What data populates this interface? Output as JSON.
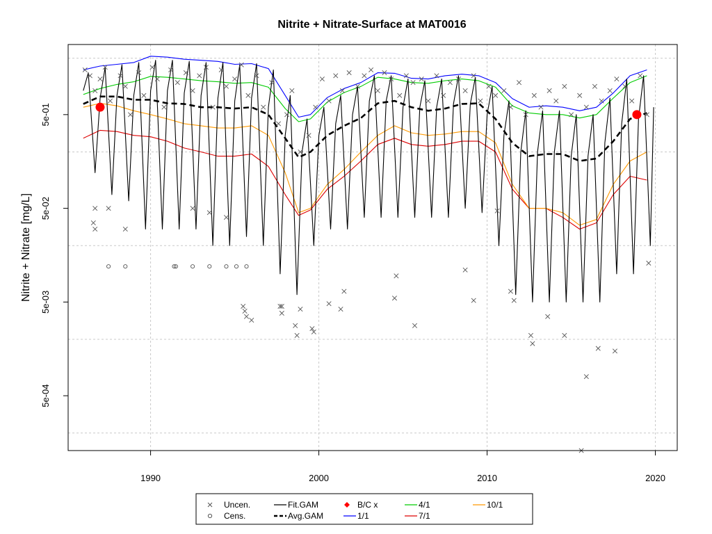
{
  "chart_data": {
    "type": "line",
    "title": "Nitrite + Nitrate-Surface at MAT0016",
    "xlabel": "",
    "ylabel": "Nitrite + Nitrate [mg/L]",
    "y_scale": "log",
    "xlim": [
      1985.1,
      2021.3
    ],
    "ylim": [
      0.00013,
      2.8
    ],
    "x_ticks": [
      1990,
      2000,
      2010,
      2020
    ],
    "x_tick_labels": [
      "1990",
      "2000",
      "2010",
      "2020"
    ],
    "y_ticks": [
      0.0005,
      0.005,
      0.05,
      0.5
    ],
    "y_tick_labels": [
      "5e-04",
      "5e-03",
      "5e-02",
      "5e-01"
    ],
    "grid": true,
    "grid_h_lines": [
      0.0002,
      0.002,
      0.02,
      0.2,
      2
    ],
    "grid_v_lines": [
      1990,
      2000,
      2010,
      2020
    ],
    "legend_position": "bottom",
    "series": [
      {
        "name": "Avg.GAM",
        "color": "#000000",
        "style": "dashed",
        "x": [
          1986.0,
          1987.0,
          1988.0,
          1989.0,
          1990.0,
          1991.0,
          1992.0,
          1993.0,
          1994.0,
          1995.0,
          1996.0,
          1997.0,
          1998.0,
          1998.8,
          1999.5,
          2000.5,
          2001.5,
          2002.5,
          2003.5,
          2004.5,
          2005.5,
          2006.5,
          2007.5,
          2008.5,
          2009.5,
          2010.5,
          2011.5,
          2012.5,
          2013.5,
          2014.5,
          2015.5,
          2016.5,
          2017.5,
          2018.5,
          2019.5
        ],
        "y": [
          0.65,
          0.78,
          0.78,
          0.72,
          0.72,
          0.66,
          0.65,
          0.6,
          0.6,
          0.58,
          0.6,
          0.5,
          0.28,
          0.175,
          0.2,
          0.3,
          0.38,
          0.46,
          0.66,
          0.7,
          0.6,
          0.55,
          0.58,
          0.65,
          0.66,
          0.45,
          0.25,
          0.18,
          0.19,
          0.19,
          0.16,
          0.17,
          0.26,
          0.45,
          0.52
        ]
      },
      {
        "name": "1/1",
        "color": "#0000ff",
        "style": "solid",
        "x": [
          1986.0,
          1987.0,
          1988.0,
          1989.0,
          1990.0,
          1991.0,
          1992.0,
          1993.0,
          1994.0,
          1995.0,
          1996.0,
          1997.0,
          1998.0,
          1998.8,
          1999.5,
          2000.5,
          2001.5,
          2002.5,
          2003.5,
          2004.5,
          2005.5,
          2006.5,
          2007.5,
          2008.5,
          2009.5,
          2010.5,
          2011.5,
          2012.5,
          2013.5,
          2014.5,
          2015.5,
          2016.5,
          2017.5,
          2018.5,
          2019.5
        ],
        "y": [
          1.5,
          1.65,
          1.72,
          1.8,
          2.1,
          2.05,
          1.95,
          1.9,
          1.85,
          1.72,
          1.75,
          1.55,
          0.8,
          0.47,
          0.5,
          0.76,
          0.95,
          1.1,
          1.4,
          1.38,
          1.22,
          1.2,
          1.3,
          1.35,
          1.3,
          1.1,
          0.74,
          0.6,
          0.62,
          0.6,
          0.55,
          0.6,
          0.85,
          1.3,
          1.5
        ]
      },
      {
        "name": "4/1",
        "color": "#00cc00",
        "style": "solid",
        "x": [
          1986.0,
          1987.0,
          1988.0,
          1989.0,
          1990.0,
          1991.0,
          1992.0,
          1993.0,
          1994.0,
          1995.0,
          1996.0,
          1997.0,
          1998.0,
          1998.8,
          1999.5,
          2000.5,
          2001.5,
          2002.5,
          2003.5,
          2004.5,
          2005.5,
          2006.5,
          2007.5,
          2008.5,
          2009.5,
          2010.5,
          2011.5,
          2012.5,
          2013.5,
          2014.5,
          2015.5,
          2016.5,
          2017.5,
          2018.5,
          2019.5
        ],
        "y": [
          0.82,
          0.95,
          1.05,
          1.12,
          1.28,
          1.25,
          1.2,
          1.15,
          1.12,
          1.08,
          1.1,
          0.98,
          0.58,
          0.42,
          0.45,
          0.68,
          0.86,
          1.0,
          1.25,
          1.2,
          1.1,
          1.08,
          1.15,
          1.2,
          1.15,
          0.98,
          0.62,
          0.52,
          0.5,
          0.5,
          0.46,
          0.5,
          0.75,
          1.1,
          1.3
        ]
      },
      {
        "name": "10/1",
        "color": "#ff9900",
        "style": "solid",
        "x": [
          1986.0,
          1987.0,
          1988.0,
          1989.0,
          1990.0,
          1991.0,
          1992.0,
          1993.0,
          1994.0,
          1995.0,
          1996.0,
          1997.0,
          1998.0,
          1998.8,
          1999.5,
          2000.5,
          2001.5,
          2002.5,
          2003.5,
          2004.5,
          2005.5,
          2006.5,
          2007.5,
          2008.5,
          2009.5,
          2010.5,
          2011.5,
          2012.5,
          2013.5,
          2014.5,
          2015.5,
          2016.5,
          2017.5,
          2018.5,
          2019.5
        ],
        "y": [
          0.6,
          0.66,
          0.62,
          0.55,
          0.5,
          0.45,
          0.4,
          0.38,
          0.36,
          0.36,
          0.38,
          0.3,
          0.12,
          0.045,
          0.05,
          0.09,
          0.13,
          0.2,
          0.3,
          0.38,
          0.32,
          0.3,
          0.31,
          0.33,
          0.33,
          0.25,
          0.09,
          0.05,
          0.05,
          0.045,
          0.033,
          0.038,
          0.09,
          0.16,
          0.2
        ]
      },
      {
        "name": "7/1",
        "color": "#dd0000",
        "style": "solid",
        "x": [
          1986.0,
          1987.0,
          1988.0,
          1989.0,
          1990.0,
          1991.0,
          1992.0,
          1993.0,
          1994.0,
          1995.0,
          1996.0,
          1997.0,
          1998.0,
          1998.8,
          1999.5,
          2000.5,
          2001.5,
          2002.5,
          2003.5,
          2004.5,
          2005.5,
          2006.5,
          2007.5,
          2008.5,
          2009.5,
          2010.5,
          2011.5,
          2012.5,
          2013.5,
          2014.5,
          2015.5,
          2016.5,
          2017.5,
          2018.5,
          2019.5
        ],
        "y": [
          0.28,
          0.34,
          0.33,
          0.3,
          0.29,
          0.26,
          0.22,
          0.2,
          0.18,
          0.18,
          0.19,
          0.14,
          0.07,
          0.042,
          0.048,
          0.08,
          0.11,
          0.16,
          0.24,
          0.28,
          0.24,
          0.23,
          0.24,
          0.26,
          0.26,
          0.2,
          0.08,
          0.05,
          0.05,
          0.04,
          0.03,
          0.035,
          0.07,
          0.11,
          0.1
        ]
      },
      {
        "name": "Fit.GAM",
        "color": "#000000",
        "style": "solid",
        "x": [
          1986.0,
          1986.3,
          1986.7,
          1987.0,
          1987.3,
          1987.7,
          1988.0,
          1988.3,
          1988.7,
          1989.0,
          1989.3,
          1989.7,
          1990.0,
          1990.3,
          1990.7,
          1991.0,
          1991.3,
          1991.7,
          1992.0,
          1992.3,
          1992.7,
          1993.0,
          1993.3,
          1993.7,
          1994.0,
          1994.3,
          1994.7,
          1995.0,
          1995.3,
          1995.7,
          1996.0,
          1996.3,
          1996.7,
          1997.0,
          1997.3,
          1997.7,
          1998.0,
          1998.3,
          1998.7,
          1999.0,
          1999.3,
          1999.7,
          2000.0,
          2000.3,
          2000.7,
          2001.0,
          2001.3,
          2001.7,
          2002.0,
          2002.3,
          2002.7,
          2003.0,
          2003.3,
          2003.7,
          2004.0,
          2004.3,
          2004.7,
          2005.0,
          2005.3,
          2005.7,
          2006.0,
          2006.3,
          2006.7,
          2007.0,
          2007.3,
          2007.7,
          2008.0,
          2008.3,
          2008.7,
          2009.0,
          2009.3,
          2009.7,
          2010.0,
          2010.3,
          2010.7,
          2011.0,
          2011.3,
          2011.7,
          2012.0,
          2012.3,
          2012.7,
          2013.0,
          2013.3,
          2013.7,
          2014.0,
          2014.3,
          2014.7,
          2015.0,
          2015.3,
          2015.7,
          2016.0,
          2016.3,
          2016.7,
          2017.0,
          2017.3,
          2017.7,
          2018.0,
          2018.3,
          2018.7,
          2019.0,
          2019.3,
          2019.7,
          2019.9
        ],
        "y": [
          0.9,
          1.4,
          0.12,
          0.75,
          1.6,
          0.07,
          0.8,
          1.7,
          0.06,
          0.8,
          1.8,
          0.03,
          0.9,
          1.9,
          0.03,
          0.9,
          1.9,
          0.03,
          0.85,
          1.85,
          0.03,
          0.8,
          1.8,
          0.02,
          0.75,
          1.8,
          0.02,
          0.7,
          1.7,
          0.025,
          0.75,
          1.75,
          0.02,
          0.6,
          1.5,
          0.01,
          0.3,
          0.8,
          0.006,
          0.2,
          0.45,
          0.02,
          0.3,
          0.6,
          0.03,
          0.4,
          0.8,
          0.03,
          0.5,
          1.0,
          0.04,
          0.7,
          1.3,
          0.04,
          0.7,
          1.3,
          0.04,
          0.6,
          1.2,
          0.04,
          0.6,
          1.15,
          0.04,
          0.6,
          1.2,
          0.04,
          0.65,
          1.3,
          0.05,
          0.65,
          1.25,
          0.045,
          0.5,
          1.0,
          0.02,
          0.3,
          0.7,
          0.006,
          0.2,
          0.55,
          0.005,
          0.2,
          0.55,
          0.005,
          0.2,
          0.55,
          0.005,
          0.18,
          0.5,
          0.005,
          0.18,
          0.5,
          0.005,
          0.25,
          0.75,
          0.01,
          0.4,
          1.2,
          0.01,
          0.45,
          1.3,
          0.02,
          0.6
        ]
      }
    ],
    "uncensored_points": {
      "name": "Uncen.",
      "color": "#555555",
      "x": [
        1986.1,
        1986.4,
        1986.7,
        1987.0,
        1987.3,
        1987.6,
        1988.2,
        1988.5,
        1988.8,
        1989.3,
        1989.6,
        1990.1,
        1990.4,
        1990.8,
        1991.2,
        1991.6,
        1992.1,
        1992.5,
        1992.9,
        1993.3,
        1993.7,
        1994.2,
        1994.5,
        1995.0,
        1995.4,
        1995.8,
        1996.3,
        1996.7,
        1997.2,
        1997.6,
        1998.1,
        1998.4,
        1998.9,
        1999.4,
        1999.8,
        2000.2,
        2000.6,
        2001.0,
        2001.4,
        2001.8,
        2002.3,
        2002.7,
        2003.1,
        2003.5,
        2003.9,
        2004.3,
        2004.8,
        2005.2,
        2005.6,
        2006.1,
        2006.5,
        2007.0,
        2007.4,
        2007.8,
        2008.3,
        2008.7,
        2009.2,
        2009.6,
        2010.1,
        2010.5,
        2011.0,
        2011.4,
        2011.9,
        2012.3,
        2012.8,
        2013.2,
        2013.7,
        2014.1,
        2014.6,
        2015.0,
        2015.5,
        2015.9,
        2016.4,
        2016.8,
        2017.3,
        2017.7,
        2018.2,
        2018.6,
        2019.1,
        2019.5,
        1986.6,
        1986.7,
        1986.7,
        1988.5,
        1987.5,
        1992.5,
        1993.5,
        1994.5,
        1995.6,
        1995.7,
        1997.7,
        1997.8,
        1998.6,
        1998.7,
        1999.6,
        1999.7,
        2000.6,
        2001.5,
        2004.5,
        2004.6,
        2005.7,
        2008.7,
        2010.6,
        2011.4,
        2011.6,
        2012.6,
        2012.7,
        2013.6,
        2014.6,
        2015.6,
        2015.9,
        2016.6,
        2017.6,
        2019.6,
        1995.5,
        1997.8,
        1998.9,
        1996.0,
        2001.3,
        2009.2
      ],
      "y": [
        1.5,
        1.3,
        0.9,
        1.2,
        1.6,
        0.7,
        1.3,
        1.0,
        0.5,
        1.4,
        0.8,
        1.6,
        1.2,
        0.6,
        1.5,
        1.1,
        1.4,
        0.9,
        1.3,
        1.6,
        0.6,
        1.5,
        1.0,
        1.2,
        1.7,
        0.8,
        1.3,
        0.6,
        1.1,
        0.4,
        0.5,
        0.9,
        0.2,
        0.3,
        0.6,
        1.2,
        0.7,
        1.3,
        0.9,
        1.4,
        1.0,
        1.3,
        1.5,
        0.9,
        1.4,
        1.2,
        0.8,
        1.3,
        1.1,
        1.2,
        0.7,
        1.3,
        0.8,
        1.1,
        1.2,
        0.9,
        1.3,
        0.7,
        1.0,
        0.8,
        0.9,
        0.6,
        1.1,
        0.5,
        0.8,
        0.6,
        0.9,
        0.7,
        1.0,
        0.5,
        0.8,
        0.6,
        1.0,
        0.7,
        0.9,
        1.2,
        1.0,
        0.7,
        1.3,
        0.5,
        0.035,
        0.03,
        0.05,
        0.03,
        0.05,
        0.05,
        0.045,
        0.04,
        0.004,
        0.0035,
        0.0045,
        0.0038,
        0.0028,
        0.0022,
        0.0026,
        0.0024,
        0.0048,
        0.0065,
        0.0055,
        0.0095,
        0.0028,
        0.011,
        0.047,
        0.0065,
        0.0052,
        0.0022,
        0.0018,
        0.0035,
        0.0022,
        0.00013,
        0.0008,
        0.0016,
        0.0015,
        0.013,
        0.0045,
        0.0045,
        0.0042,
        0.0032,
        0.0042,
        0.0052
      ]
    },
    "censored_points": {
      "name": "Cens.",
      "color": "#555555",
      "x": [
        1987.5,
        1988.5,
        1991.4,
        1991.5,
        1992.5,
        1993.5,
        1994.5,
        1995.1,
        1995.7
      ],
      "y": [
        0.012,
        0.012,
        0.012,
        0.012,
        0.012,
        0.012,
        0.012,
        0.012,
        0.012
      ]
    },
    "bc_points": {
      "name": "B/C x",
      "color": "#ff0000",
      "x": [
        1987.0,
        2018.9
      ],
      "y": [
        0.6,
        0.5
      ]
    },
    "legend": [
      {
        "label": "Uncen.",
        "kind": "cross",
        "color": "#555555"
      },
      {
        "label": "Cens.",
        "kind": "circle",
        "color": "#555555"
      },
      {
        "label": "Fit.GAM",
        "kind": "line",
        "color": "#000000"
      },
      {
        "label": "Avg.GAM",
        "kind": "dashed",
        "color": "#000000"
      },
      {
        "label": "B/C x",
        "kind": "diamond",
        "color": "#ff0000"
      },
      {
        "label": "1/1",
        "kind": "line",
        "color": "#0000ff"
      },
      {
        "label": "4/1",
        "kind": "line",
        "color": "#00cc00"
      },
      {
        "label": "7/1",
        "kind": "line",
        "color": "#dd0000"
      },
      {
        "label": "10/1",
        "kind": "line",
        "color": "#ff9900"
      }
    ]
  }
}
